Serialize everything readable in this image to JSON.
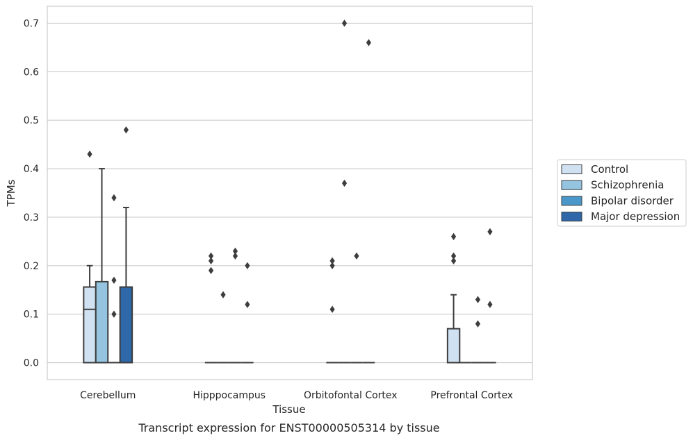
{
  "chart_data": {
    "type": "box",
    "title": "",
    "caption": "Transcript expression for ENST00000505314 by tissue",
    "xlabel": "Tissue",
    "ylabel": "TPMs",
    "ylim": [
      -0.035,
      0.735
    ],
    "yticks": [
      0.0,
      0.1,
      0.2,
      0.3,
      0.4,
      0.5,
      0.6,
      0.7
    ],
    "ytick_labels": [
      "0.0",
      "0.1",
      "0.2",
      "0.3",
      "0.4",
      "0.5",
      "0.6",
      "0.7"
    ],
    "grid": "horizontal",
    "legend_position": "right",
    "categories": [
      "Cerebellum",
      "Hipppocampus",
      "Orbitofontal Cortex",
      "Prefrontal Cortex"
    ],
    "series": [
      {
        "name": "Control",
        "color": "#d0e1f2",
        "boxes": [
          {
            "q1": 0.0,
            "median": 0.11,
            "q3": 0.156,
            "whisker_low": 0.0,
            "whisker_high": 0.2,
            "outliers": [
              0.43
            ]
          },
          {
            "q1": 0.0,
            "median": 0.0,
            "q3": 0.0,
            "whisker_low": 0.0,
            "whisker_high": 0.0,
            "outliers": [
              0.22,
              0.21,
              0.19
            ]
          },
          {
            "q1": 0.0,
            "median": 0.0,
            "q3": 0.0,
            "whisker_low": 0.0,
            "whisker_high": 0.0,
            "outliers": [
              0.21,
              0.2,
              0.11
            ]
          },
          {
            "q1": 0.0,
            "median": 0.0,
            "q3": 0.07,
            "whisker_low": 0.0,
            "whisker_high": 0.14,
            "outliers": [
              0.26,
              0.22,
              0.21
            ]
          }
        ]
      },
      {
        "name": "Schizophrenia",
        "color": "#94c4df",
        "boxes": [
          {
            "q1": 0.0,
            "median": 0.0,
            "q3": 0.167,
            "whisker_low": 0.0,
            "whisker_high": 0.4,
            "outliers": []
          },
          {
            "q1": 0.0,
            "median": 0.0,
            "q3": 0.0,
            "whisker_low": 0.0,
            "whisker_high": 0.0,
            "outliers": [
              0.14
            ]
          },
          {
            "q1": 0.0,
            "median": 0.0,
            "q3": 0.0,
            "whisker_low": 0.0,
            "whisker_high": 0.0,
            "outliers": [
              0.7,
              0.37
            ]
          },
          {
            "q1": 0.0,
            "median": 0.0,
            "q3": 0.0,
            "whisker_low": 0.0,
            "whisker_high": 0.0,
            "outliers": []
          }
        ]
      },
      {
        "name": "Bipolar disorder",
        "color": "#4a98c9",
        "boxes": [
          {
            "q1": 0.0,
            "median": 0.0,
            "q3": 0.0,
            "whisker_low": 0.0,
            "whisker_high": 0.0,
            "outliers": [
              0.34,
              0.17,
              0.1
            ]
          },
          {
            "q1": 0.0,
            "median": 0.0,
            "q3": 0.0,
            "whisker_low": 0.0,
            "whisker_high": 0.0,
            "outliers": [
              0.23,
              0.22
            ]
          },
          {
            "q1": 0.0,
            "median": 0.0,
            "q3": 0.0,
            "whisker_low": 0.0,
            "whisker_high": 0.0,
            "outliers": [
              0.22
            ]
          },
          {
            "q1": 0.0,
            "median": 0.0,
            "q3": 0.0,
            "whisker_low": 0.0,
            "whisker_high": 0.0,
            "outliers": [
              0.13,
              0.08
            ]
          }
        ]
      },
      {
        "name": "Major depression",
        "color": "#2e68a8",
        "boxes": [
          {
            "q1": 0.0,
            "median": 0.0,
            "q3": 0.156,
            "whisker_low": 0.0,
            "whisker_high": 0.32,
            "outliers": [
              0.48
            ]
          },
          {
            "q1": 0.0,
            "median": 0.0,
            "q3": 0.0,
            "whisker_low": 0.0,
            "whisker_high": 0.0,
            "outliers": [
              0.2,
              0.12
            ]
          },
          {
            "q1": 0.0,
            "median": 0.0,
            "q3": 0.0,
            "whisker_low": 0.0,
            "whisker_high": 0.0,
            "outliers": [
              0.66
            ]
          },
          {
            "q1": 0.0,
            "median": 0.0,
            "q3": 0.0,
            "whisker_low": 0.0,
            "whisker_high": 0.0,
            "outliers": [
              0.27,
              0.12
            ]
          }
        ]
      }
    ],
    "colors": {
      "grid": "#cccccc",
      "axis_frame": "#cccccc",
      "box_edge": "#3d3d3d",
      "outlier": "#3d3d3d"
    }
  }
}
